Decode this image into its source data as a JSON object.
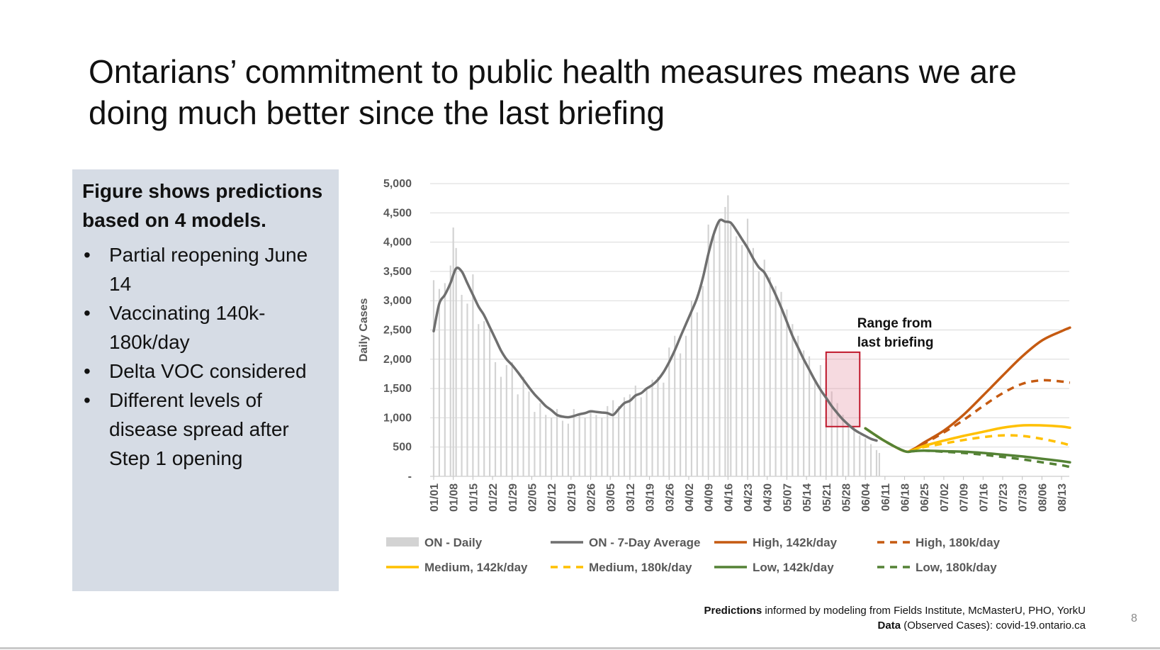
{
  "slide": {
    "title": "Ontarians’ commitment to public health measures means we are doing much better since the last briefing",
    "page_number": "8"
  },
  "panel": {
    "heading": "Figure shows predictions based on 4 models.",
    "bullets": [
      "Partial reopening June 14",
      "Vaccinating 140k-180k/day",
      "Delta VOC considered",
      "Different levels of disease spread after Step 1 opening"
    ]
  },
  "footer": {
    "predictions_bold": "Predictions",
    "predictions_text": " informed by modeling from Fields Institute, McMasterU, PHO, YorkU",
    "data_bold": "Data",
    "data_text": " (Observed Cases): covid-19.ontario.ca"
  },
  "chart_data": {
    "type": "bar",
    "title": "",
    "ylabel": "Daily Cases",
    "xlabel": "",
    "ylim": [
      0,
      5000
    ],
    "grid": true,
    "legend_position": "bottom",
    "ytick_labels": [
      "-",
      "500",
      "1,000",
      "1,500",
      "2,000",
      "2,500",
      "3,000",
      "3,500",
      "4,000",
      "4,500",
      "5,000"
    ],
    "ytick_values": [
      0,
      500,
      1000,
      1500,
      2000,
      2500,
      3000,
      3500,
      4000,
      4500,
      5000
    ],
    "x_start_date": "2021-01-01",
    "xtick_labels": [
      "01/01",
      "01/08",
      "01/15",
      "01/22",
      "01/29",
      "02/05",
      "02/12",
      "02/19",
      "02/26",
      "03/05",
      "03/12",
      "03/19",
      "03/26",
      "04/02",
      "04/09",
      "04/16",
      "04/23",
      "04/30",
      "05/07",
      "05/14",
      "05/21",
      "05/28",
      "06/04",
      "06/11",
      "06/18",
      "06/25",
      "07/02",
      "07/09",
      "07/16",
      "07/23",
      "07/30",
      "08/06",
      "08/13"
    ],
    "annotation": {
      "text": "Range from last briefing",
      "x_range": [
        "05/21",
        "06/02"
      ],
      "y_range": [
        850,
        2120
      ],
      "color": "#c0182c"
    },
    "series": [
      {
        "name": "ON - Daily",
        "kind": "bar",
        "color": "#d3d3d3",
        "x": [
          "01/01",
          "01/03",
          "01/05",
          "01/07",
          "01/08",
          "01/09",
          "01/11",
          "01/13",
          "01/15",
          "01/17",
          "01/19",
          "01/21",
          "01/23",
          "01/25",
          "01/27",
          "01/29",
          "01/31",
          "02/02",
          "02/04",
          "02/06",
          "02/08",
          "02/10",
          "02/12",
          "02/14",
          "02/16",
          "02/18",
          "02/20",
          "02/22",
          "02/24",
          "02/26",
          "02/28",
          "03/02",
          "03/04",
          "03/06",
          "03/08",
          "03/10",
          "03/12",
          "03/14",
          "03/16",
          "03/18",
          "03/20",
          "03/22",
          "03/24",
          "03/26",
          "03/28",
          "03/30",
          "04/01",
          "04/03",
          "04/05",
          "04/07",
          "04/09",
          "04/11",
          "04/13",
          "04/15",
          "04/16",
          "04/17",
          "04/19",
          "04/21",
          "04/23",
          "04/25",
          "04/27",
          "04/29",
          "05/01",
          "05/03",
          "05/05",
          "05/07",
          "05/09",
          "05/11",
          "05/13",
          "05/15",
          "05/17",
          "05/19",
          "05/21",
          "05/23",
          "05/25",
          "05/27",
          "05/29",
          "05/31",
          "06/02",
          "06/04",
          "06/06",
          "06/08",
          "06/09"
        ],
        "values": [
          3350,
          3200,
          3300,
          3600,
          4250,
          3900,
          3100,
          2950,
          3450,
          2600,
          2650,
          2500,
          1950,
          1700,
          1900,
          1950,
          1400,
          1700,
          1450,
          1100,
          1250,
          1050,
          1000,
          1150,
          950,
          900,
          1150,
          1050,
          1000,
          1100,
          1050,
          1000,
          1200,
          1300,
          1200,
          1350,
          1400,
          1550,
          1350,
          1500,
          1650,
          1700,
          1600,
          2200,
          2400,
          2100,
          2400,
          3000,
          2800,
          3250,
          4300,
          4200,
          4400,
          4600,
          4800,
          4300,
          4100,
          3950,
          4400,
          3900,
          3500,
          3700,
          3400,
          3250,
          3150,
          2850,
          2600,
          2400,
          2150,
          2050,
          1650,
          1900,
          1950,
          1450,
          1250,
          1050,
          900,
          850,
          700,
          650,
          550,
          450,
          400
        ]
      },
      {
        "name": "ON - 7-Day Average",
        "kind": "line",
        "color": "#6f6f6f",
        "x": [
          "01/01",
          "01/03",
          "01/05",
          "01/07",
          "01/09",
          "01/11",
          "01/13",
          "01/15",
          "01/17",
          "01/19",
          "01/21",
          "01/23",
          "01/25",
          "01/27",
          "01/29",
          "01/31",
          "02/02",
          "02/04",
          "02/06",
          "02/08",
          "02/10",
          "02/12",
          "02/14",
          "02/16",
          "02/18",
          "02/20",
          "02/22",
          "02/24",
          "02/26",
          "02/28",
          "03/02",
          "03/04",
          "03/06",
          "03/08",
          "03/10",
          "03/12",
          "03/14",
          "03/16",
          "03/18",
          "03/20",
          "03/22",
          "03/24",
          "03/26",
          "03/28",
          "03/30",
          "04/01",
          "04/03",
          "04/05",
          "04/07",
          "04/09",
          "04/11",
          "04/13",
          "04/15",
          "04/17",
          "04/19",
          "04/21",
          "04/23",
          "04/25",
          "04/27",
          "04/29",
          "05/01",
          "05/03",
          "05/05",
          "05/07",
          "05/09",
          "05/11",
          "05/13",
          "05/15",
          "05/17",
          "05/19",
          "05/21",
          "05/23",
          "05/25",
          "05/27",
          "05/29",
          "05/31",
          "06/02",
          "06/04",
          "06/06",
          "06/08"
        ],
        "values": [
          2480,
          2950,
          3100,
          3300,
          3550,
          3500,
          3300,
          3100,
          2900,
          2750,
          2550,
          2350,
          2150,
          2000,
          1900,
          1780,
          1650,
          1520,
          1400,
          1300,
          1200,
          1130,
          1050,
          1020,
          1010,
          1030,
          1060,
          1080,
          1110,
          1100,
          1090,
          1080,
          1050,
          1150,
          1250,
          1290,
          1380,
          1420,
          1500,
          1560,
          1650,
          1780,
          1950,
          2150,
          2380,
          2600,
          2820,
          3050,
          3380,
          3800,
          4150,
          4370,
          4350,
          4330,
          4200,
          4050,
          3900,
          3720,
          3570,
          3480,
          3300,
          3100,
          2880,
          2640,
          2400,
          2200,
          2000,
          1820,
          1640,
          1480,
          1340,
          1200,
          1080,
          970,
          880,
          800,
          740,
          690,
          640,
          610
        ]
      },
      {
        "name": "High, 142k/day",
        "kind": "line",
        "dash": "solid",
        "color": "#c55a11",
        "x": [
          "06/04",
          "06/11",
          "06/18",
          "06/21",
          "06/25",
          "07/02",
          "07/09",
          "07/16",
          "07/23",
          "07/30",
          "08/06",
          "08/13",
          "08/16"
        ],
        "values": [
          820,
          600,
          430,
          460,
          580,
          780,
          1050,
          1380,
          1720,
          2050,
          2320,
          2480,
          2540
        ]
      },
      {
        "name": "High, 180k/day",
        "kind": "line",
        "dash": "dashed",
        "color": "#c55a11",
        "x": [
          "06/04",
          "06/11",
          "06/18",
          "06/21",
          "06/25",
          "07/02",
          "07/09",
          "07/16",
          "07/23",
          "07/30",
          "08/06",
          "08/13",
          "08/16"
        ],
        "values": [
          820,
          600,
          430,
          460,
          560,
          750,
          960,
          1200,
          1420,
          1580,
          1640,
          1620,
          1600
        ]
      },
      {
        "name": "Medium, 142k/day",
        "kind": "line",
        "dash": "solid",
        "color": "#ffc000",
        "x": [
          "06/04",
          "06/11",
          "06/18",
          "06/21",
          "06/25",
          "07/02",
          "07/09",
          "07/16",
          "07/23",
          "07/30",
          "08/06",
          "08/13",
          "08/16"
        ],
        "values": [
          820,
          600,
          430,
          450,
          520,
          610,
          690,
          760,
          830,
          870,
          870,
          850,
          830
        ]
      },
      {
        "name": "Medium, 180k/day",
        "kind": "line",
        "dash": "dashed",
        "color": "#ffc000",
        "x": [
          "06/04",
          "06/11",
          "06/18",
          "06/21",
          "06/25",
          "07/02",
          "07/09",
          "07/16",
          "07/23",
          "07/30",
          "08/06",
          "08/13",
          "08/16"
        ],
        "values": [
          820,
          600,
          430,
          450,
          500,
          560,
          620,
          670,
          700,
          690,
          640,
          570,
          530
        ]
      },
      {
        "name": "Low, 142k/day",
        "kind": "line",
        "dash": "solid",
        "color": "#548235",
        "x": [
          "06/04",
          "06/11",
          "06/18",
          "06/21",
          "06/25",
          "07/02",
          "07/09",
          "07/16",
          "07/23",
          "07/30",
          "08/06",
          "08/13",
          "08/16"
        ],
        "values": [
          820,
          600,
          430,
          430,
          440,
          430,
          420,
          400,
          370,
          340,
          300,
          260,
          240
        ]
      },
      {
        "name": "Low, 180k/day",
        "kind": "line",
        "dash": "dashed",
        "color": "#548235",
        "x": [
          "06/04",
          "06/11",
          "06/18",
          "06/21",
          "06/25",
          "07/02",
          "07/09",
          "07/16",
          "07/23",
          "07/30",
          "08/06",
          "08/13",
          "08/16"
        ],
        "values": [
          820,
          600,
          430,
          430,
          440,
          420,
          400,
          370,
          330,
          290,
          240,
          190,
          160
        ]
      }
    ]
  }
}
